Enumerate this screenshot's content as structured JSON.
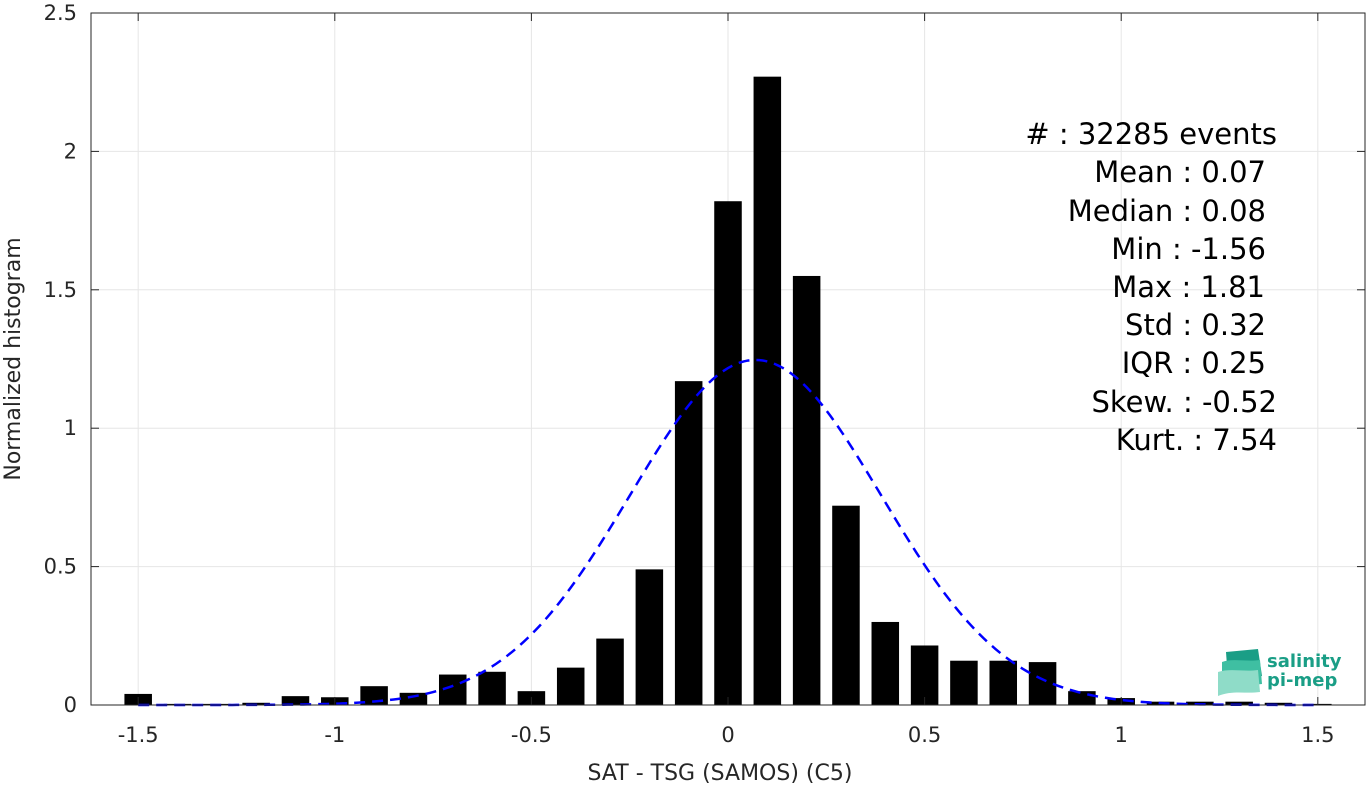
{
  "chart_data": {
    "type": "bar",
    "xlabel": "SAT - TSG (SAMOS) (C5)",
    "ylabel": "Normalized histogram",
    "xlim": [
      -1.62,
      1.62
    ],
    "ylim": [
      0,
      2.5
    ],
    "grid": true,
    "xticks": [
      -1.5,
      -1,
      -0.5,
      0,
      0.5,
      1,
      1.5
    ],
    "xtick_labels": [
      "-1.5",
      "-1",
      "-0.5",
      "0",
      "0.5",
      "1",
      "1.5"
    ],
    "yticks": [
      0,
      0.5,
      1,
      1.5,
      2,
      2.5
    ],
    "ytick_labels": [
      "0",
      "0.5",
      "1",
      "1.5",
      "2",
      "2.5"
    ],
    "bar_width": 0.07,
    "bars": {
      "x": [
        -1.5,
        -1.4,
        -1.3,
        -1.2,
        -1.1,
        -1.0,
        -0.9,
        -0.8,
        -0.7,
        -0.6,
        -0.5,
        -0.4,
        -0.3,
        -0.2,
        -0.1,
        0.0,
        0.1,
        0.2,
        0.3,
        0.4,
        0.5,
        0.6,
        0.7,
        0.8,
        0.9,
        1.0,
        1.1,
        1.2,
        1.3,
        1.4,
        1.5
      ],
      "values": [
        0.04,
        0.004,
        0.004,
        0.008,
        0.032,
        0.028,
        0.068,
        0.044,
        0.11,
        0.12,
        0.05,
        0.135,
        0.24,
        0.49,
        1.17,
        1.82,
        2.27,
        1.55,
        0.72,
        0.3,
        0.215,
        0.16,
        0.16,
        0.155,
        0.05,
        0.025,
        0.012,
        0.012,
        0.012,
        0.008,
        0.004
      ]
    },
    "fit": {
      "type": "gaussian",
      "mean": 0.07,
      "std": 0.32,
      "style": "dashed",
      "color": "#0000ff"
    },
    "bar_color": "#000000"
  },
  "stats": {
    "lines": [
      {
        "label": "#  : 32285 events"
      },
      {
        "label": "Mean : 0.07"
      },
      {
        "label": "Median : 0.08"
      },
      {
        "label": "Min : -1.56"
      },
      {
        "label": "Max : 1.81"
      },
      {
        "label": "Std : 0.32"
      },
      {
        "label": "IQR : 0.25"
      },
      {
        "label": "Skew. : -0.52"
      },
      {
        "label": "Kurt. : 7.54"
      }
    ]
  },
  "logo": {
    "line1": "salinity",
    "line2": "pi-mep",
    "color": "#1a9e86"
  }
}
